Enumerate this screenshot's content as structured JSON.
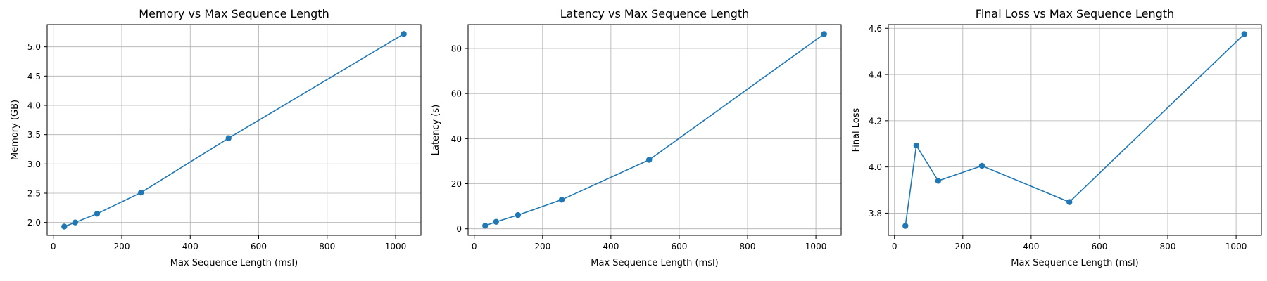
{
  "chart_data": [
    {
      "type": "line",
      "title": "Memory vs Max Sequence Length",
      "xlabel": "Max Sequence Length (msl)",
      "ylabel": "Memory (GB)",
      "x": [
        32,
        64,
        128,
        256,
        512,
        1024
      ],
      "y": [
        1.93,
        2.0,
        2.15,
        2.51,
        3.44,
        5.22
      ],
      "xlim": [
        -18,
        1074
      ],
      "ylim": [
        1.78,
        5.38
      ],
      "xticks": [
        0,
        200,
        400,
        600,
        800,
        1000
      ],
      "yticks": [
        2.0,
        2.5,
        3.0,
        3.5,
        4.0,
        4.5,
        5.0
      ],
      "ytick_labels": [
        "2.0",
        "2.5",
        "3.0",
        "3.5",
        "4.0",
        "4.5",
        "5.0"
      ],
      "grid": true,
      "marker": "circle",
      "color": "#1f77b4"
    },
    {
      "type": "line",
      "title": "Latency vs Max Sequence Length",
      "xlabel": "Max Sequence Length (msl)",
      "ylabel": "Latency (s)",
      "x": [
        32,
        64,
        128,
        256,
        512,
        1024
      ],
      "y": [
        1.4,
        3.1,
        6.1,
        12.9,
        30.6,
        86.4
      ],
      "xlim": [
        -18,
        1074
      ],
      "ylim": [
        -2.9,
        90.6
      ],
      "xticks": [
        0,
        200,
        400,
        600,
        800,
        1000
      ],
      "yticks": [
        0,
        20,
        40,
        60,
        80
      ],
      "ytick_labels": [
        "0",
        "20",
        "40",
        "60",
        "80"
      ],
      "grid": true,
      "marker": "circle",
      "color": "#1f77b4"
    },
    {
      "type": "line",
      "title": "Final Loss vs Max Sequence Length",
      "xlabel": "Max Sequence Length (msl)",
      "ylabel": "Final Loss",
      "x": [
        32,
        64,
        128,
        256,
        512,
        1024
      ],
      "y": [
        3.745,
        4.093,
        3.94,
        4.005,
        3.848,
        4.575
      ],
      "xlim": [
        -18,
        1074
      ],
      "ylim": [
        3.704,
        4.616
      ],
      "xticks": [
        0,
        200,
        400,
        600,
        800,
        1000
      ],
      "yticks": [
        3.8,
        4.0,
        4.2,
        4.4,
        4.6
      ],
      "ytick_labels": [
        "3.8",
        "4.0",
        "4.2",
        "4.4",
        "4.6"
      ],
      "grid": true,
      "marker": "circle",
      "color": "#1f77b4"
    }
  ]
}
